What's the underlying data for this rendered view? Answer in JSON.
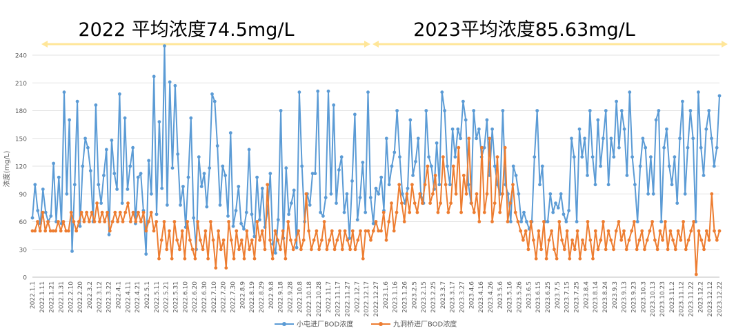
{
  "chart_data": {
    "type": "line",
    "title": "",
    "xlabel": "",
    "ylabel": "浓度(mg/L)",
    "ylim": [
      0,
      240
    ],
    "yticks": [
      0,
      30,
      60,
      90,
      120,
      150,
      180,
      210,
      240
    ],
    "grid": "horizontal",
    "legend_position": "bottom",
    "annotations": [
      {
        "text": "2022 平均浓度74.5mg/L"
      },
      {
        "text": "2023平均浓度85.63mg/L"
      }
    ],
    "annotation_color": "#FFE699",
    "x_ticks": [
      "2022.1.1",
      "2022.1.11",
      "2022.1.21",
      "2022.1.31",
      "2022.2.10",
      "2022.2.20",
      "2022.3.2",
      "2022.3.12",
      "2022.3.22",
      "2022.4.1",
      "2022.4.11",
      "2022.4.21",
      "2022.5.1",
      "2022.5.11",
      "2022.5.21",
      "2022.5.31",
      "2022.6.10",
      "2022.6.20",
      "2022.6.30",
      "2022.7.10",
      "2022.7.20",
      "2022.7.30",
      "2022.8.9",
      "2022.8.19",
      "2022.8.29",
      "2022.9.8",
      "2022.9.18",
      "2022.9.28",
      "2022.10.8",
      "2022.10.18",
      "2022.10.28",
      "2022.11.7",
      "2022.11.17",
      "2022.11.27",
      "2022.12.7",
      "2022.12.17",
      "2022.12.27",
      "2023.1.6",
      "2023.1.16",
      "2023.1.26",
      "2023.2.5",
      "2023.2.15",
      "2023.2.25",
      "2023.3.7",
      "2023.3.17",
      "2023.3.27",
      "2023.4.6",
      "2023.4.16",
      "2023.4.26",
      "2023.5.6",
      "2023.5.16",
      "2023.5.26",
      "2023.6.5",
      "2023.6.15",
      "2023.6.25",
      "2023.7.5",
      "2023.7.15",
      "2023.7.25",
      "2023.8.4",
      "2023.8.14",
      "2023.8.24",
      "2023.9.3",
      "2023.9.13",
      "2023.9.23",
      "2023.10.3",
      "2023.10.13",
      "2023.10.23",
      "2023.11.2",
      "2023.11.12",
      "2023.11.22",
      "2023.12.2",
      "2023.12.12",
      "2023.12.22"
    ],
    "series": [
      {
        "name": "小屯进厂BOD浓度",
        "color": "#5B9BD5",
        "values": [
          64,
          100,
          72,
          58,
          95,
          70,
          60,
          66,
          123,
          60,
          108,
          58,
          200,
          90,
          170,
          28,
          100,
          190,
          55,
          120,
          150,
          140,
          115,
          60,
          186,
          100,
          80,
          110,
          138,
          46,
          148,
          112,
          95,
          198,
          80,
          172,
          95,
          120,
          140,
          58,
          108,
          112,
          72,
          25,
          126,
          90,
          217,
          68,
          168,
          96,
          250,
          78,
          211,
          118,
          207,
          133,
          78,
          98,
          54,
          108,
          172,
          64,
          30,
          130,
          98,
          112,
          76,
          118,
          198,
          190,
          142,
          78,
          120,
          110,
          66,
          156,
          55,
          72,
          98,
          58,
          52,
          70,
          138,
          68,
          44,
          108,
          62,
          96,
          54,
          70,
          112,
          36,
          26,
          62,
          180,
          42,
          118,
          68,
          80,
          94,
          32,
          200,
          120,
          60,
          90,
          78,
          112,
          112,
          201,
          70,
          66,
          86,
          201,
          90,
          186,
          80,
          116,
          130,
          70,
          90,
          42,
          104,
          176,
          62,
          86,
          124,
          70,
          200,
          86,
          58,
          96,
          90,
          108,
          72,
          150,
          100,
          120,
          135,
          180,
          130,
          90,
          80,
          96,
          170,
          110,
          125,
          150,
          90,
          80,
          180,
          130,
          120,
          95,
          145,
          100,
          200,
          180,
          120,
          100,
          160,
          130,
          160,
          150,
          190,
          170,
          100,
          80,
          180,
          150,
          160,
          130,
          140,
          170,
          110,
          160,
          120,
          100,
          90,
          180,
          100,
          90,
          60,
          120,
          110,
          90,
          60,
          70,
          60,
          52,
          60,
          130,
          180,
          100,
          120,
          60,
          60,
          90,
          70,
          80,
          75,
          90,
          68,
          60,
          72,
          150,
          130,
          60,
          160,
          130,
          150,
          110,
          180,
          130,
          100,
          170,
          120,
          150,
          180,
          100,
          150,
          130,
          190,
          140,
          180,
          160,
          110,
          200,
          130,
          100,
          60,
          120,
          150,
          140,
          90,
          130,
          90,
          170,
          180,
          60,
          140,
          160,
          120,
          100,
          130,
          80,
          150,
          190,
          90,
          140,
          180,
          150,
          60,
          200,
          140,
          110,
          160,
          180,
          150,
          120,
          140,
          196
        ]
      },
      {
        "name": "九洞桥进厂BOD浓度",
        "color": "#ED7D31",
        "values": [
          50,
          50,
          60,
          50,
          70,
          50,
          60,
          50,
          50,
          50,
          60,
          50,
          60,
          50,
          50,
          70,
          60,
          50,
          60,
          70,
          60,
          70,
          60,
          70,
          60,
          80,
          60,
          70,
          60,
          70,
          50,
          60,
          70,
          60,
          70,
          60,
          70,
          80,
          60,
          70,
          60,
          70,
          60,
          70,
          50,
          60,
          70,
          50,
          60,
          20,
          40,
          60,
          30,
          50,
          20,
          60,
          40,
          30,
          50,
          20,
          60,
          40,
          30,
          20,
          60,
          40,
          30,
          50,
          20,
          60,
          40,
          10,
          50,
          30,
          40,
          10,
          60,
          40,
          20,
          50,
          30,
          40,
          20,
          50,
          30,
          40,
          20,
          60,
          40,
          50,
          30,
          100,
          40,
          20,
          50,
          40,
          30,
          50,
          20,
          60,
          40,
          30,
          40,
          50,
          30,
          40,
          90,
          50,
          30,
          40,
          50,
          30,
          40,
          60,
          30,
          40,
          50,
          30,
          40,
          50,
          30,
          50,
          40,
          30,
          50,
          30,
          40,
          50,
          20,
          50,
          50,
          40,
          50,
          60,
          50,
          50,
          70,
          40,
          60,
          80,
          50,
          70,
          100,
          80,
          60,
          90,
          70,
          100,
          80,
          70,
          90,
          80,
          100,
          120,
          80,
          90,
          110,
          70,
          80,
          130,
          100,
          70,
          80,
          120,
          90,
          140,
          70,
          110,
          90,
          150,
          80,
          70,
          90,
          60,
          140,
          70,
          90,
          150,
          60,
          80,
          130,
          70,
          90,
          140,
          60,
          80,
          100,
          70,
          60,
          50,
          40,
          50,
          30,
          60,
          40,
          20,
          50,
          30,
          60,
          20,
          40,
          50,
          30,
          20,
          60,
          40,
          30,
          50,
          20,
          40,
          30,
          50,
          20,
          40,
          30,
          60,
          40,
          20,
          50,
          30,
          40,
          60,
          30,
          50,
          40,
          30,
          50,
          60,
          40,
          50,
          30,
          40,
          50,
          60,
          30,
          40,
          50,
          30,
          40,
          50,
          60,
          40,
          30,
          50,
          40,
          60,
          30,
          50,
          40,
          30,
          50,
          40,
          60,
          30,
          40,
          50,
          60,
          3,
          50,
          40,
          30,
          50,
          40,
          90,
          50,
          40,
          50
        ]
      }
    ]
  }
}
